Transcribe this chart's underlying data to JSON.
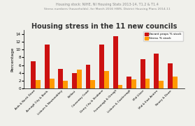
{
  "title": "Housing stress in the 11 new councils",
  "subtitle1": "Housing stock: NIHE, NI Housing Stats 2013-14, T1.2 & T1.4",
  "subtitle2": "Stress numbers (households), for March 2016 HWS, District Housing Plans 2014-11",
  "categories": [
    "Ards & North Down",
    "Armagh City & Banb.",
    "Lisburn & Newtonabbey",
    "Belfast",
    "Causeway Coast",
    "Derry City & Strabane",
    "Fermanagh & Omagh",
    "Lisburn & Castlereagh",
    "Mid Ulster",
    "Mid & East Antrim",
    "Newry & Down"
  ],
  "vacant_props": [
    7.0,
    11.2,
    5.1,
    3.9,
    6.1,
    11.3,
    13.5,
    3.1,
    7.6,
    9.0,
    6.5
  ],
  "stress": [
    2.2,
    2.6,
    2.0,
    4.9,
    2.1,
    4.4,
    0.9,
    2.4,
    2.6,
    2.0,
    3.1
  ],
  "bar_color_vacant": "#cc1111",
  "bar_color_stress": "#ff9900",
  "background_color": "#f0f0eb",
  "ylabel": "Percentage",
  "ylim": [
    0,
    15
  ],
  "yticks": [
    0,
    2,
    4,
    6,
    8,
    10,
    12,
    14
  ],
  "legend_vacant": "Vacant props % stock",
  "legend_stress": "Stress % stock",
  "title_fontsize": 7.0,
  "subtitle_fontsize": 3.5
}
